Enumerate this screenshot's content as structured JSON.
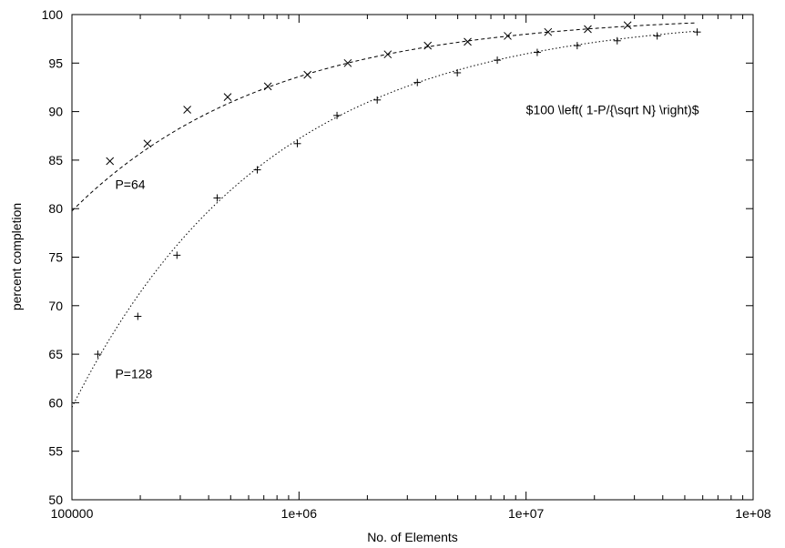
{
  "chart_data": {
    "type": "scatter",
    "title": "",
    "xlabel": "No. of Elements",
    "ylabel": "percent completion",
    "x_scale": "log",
    "xlim": [
      100000,
      100000000
    ],
    "ylim": [
      50,
      100
    ],
    "x_ticks": [
      100000,
      1000000,
      10000000,
      100000000
    ],
    "x_tick_labels": [
      "100000",
      "1e+06",
      "1e+07",
      "1e+08"
    ],
    "y_ticks": [
      50,
      55,
      60,
      65,
      70,
      75,
      80,
      85,
      90,
      95,
      100
    ],
    "y_tick_labels": [
      "50",
      "55",
      "60",
      "65",
      "70",
      "75",
      "80",
      "85",
      "90",
      "95",
      "100"
    ],
    "grid": false,
    "series": [
      {
        "name": "P=64",
        "marker": "x",
        "x": [
          147000,
          215000,
          322000,
          485000,
          729000,
          1090000,
          1640000,
          2460000,
          3690000,
          5530000,
          8300000,
          12500000,
          18700000,
          28000000
        ],
        "y": [
          84.9,
          86.7,
          90.2,
          91.5,
          92.6,
          93.8,
          95.0,
          95.9,
          96.8,
          97.2,
          97.8,
          98.2,
          98.5,
          98.9
        ]
      },
      {
        "name": "P=128",
        "marker": "+",
        "x": [
          130000,
          195000,
          290000,
          436000,
          655000,
          983000,
          1470000,
          2210000,
          3320000,
          4980000,
          7470000,
          11200000,
          16800000,
          25200000,
          37800000,
          56700000
        ],
        "y": [
          65.0,
          68.9,
          75.2,
          81.1,
          84.0,
          86.7,
          89.6,
          91.2,
          93.0,
          94.0,
          95.3,
          96.1,
          96.8,
          97.3,
          97.8,
          98.2
        ]
      }
    ],
    "fit_curves": [
      {
        "P": 64,
        "style": "dashed"
      },
      {
        "P": 128,
        "style": "dotted"
      }
    ],
    "annotations": [
      {
        "text": "$100 \\left( 1-P/{\\sqrt N} \\right)$",
        "x": 10000000,
        "y": 90.2
      },
      {
        "text": "P=64",
        "x": 155000,
        "y": 82.5
      },
      {
        "text": "P=128",
        "x": 155000,
        "y": 63.0
      }
    ]
  }
}
